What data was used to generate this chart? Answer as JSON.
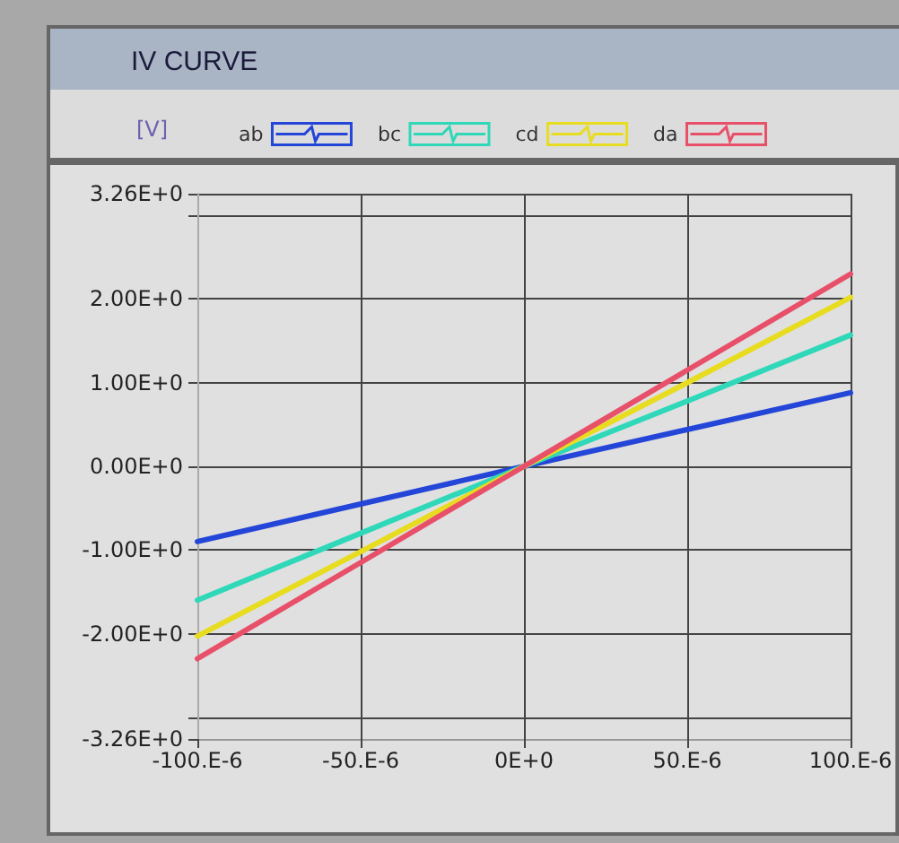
{
  "chart_data": {
    "type": "line",
    "title": "IV CURVE",
    "ylabel": "[V]",
    "categories": [
      "-100.E-6",
      "-50.E-6",
      "0E+0",
      "50.E-6",
      "100.E-6"
    ],
    "series": [
      {
        "name": "ab",
        "color": "#2446d8",
        "values": [
          -0.9,
          -0.45,
          0,
          0.44,
          0.88
        ]
      },
      {
        "name": "bc",
        "color": "#2ed8b8",
        "values": [
          -1.6,
          -0.8,
          0,
          0.78,
          1.57
        ]
      },
      {
        "name": "cd",
        "color": "#e8dc20",
        "values": [
          -2.03,
          -1.02,
          0,
          1.0,
          2.02
        ]
      },
      {
        "name": "da",
        "color": "#e8506a",
        "values": [
          -2.3,
          -1.15,
          0,
          1.15,
          2.3
        ]
      }
    ],
    "ylim": [
      -3.26,
      3.26
    ],
    "yticks": [
      {
        "value": -3.26,
        "label": "-3.26E+0"
      },
      {
        "value": -3,
        "label": null
      },
      {
        "value": -2,
        "label": "-2.00E+0"
      },
      {
        "value": -1,
        "label": "-1.00E+0"
      },
      {
        "value": 0,
        "label": "0.00E+0"
      },
      {
        "value": 1,
        "label": "1.00E+0"
      },
      {
        "value": 2,
        "label": "2.00E+0"
      },
      {
        "value": 3,
        "label": null
      },
      {
        "value": 3.26,
        "label": "3.26E+0"
      }
    ],
    "grid": true,
    "legend": "top",
    "marker": "none",
    "line_style": "solid"
  }
}
